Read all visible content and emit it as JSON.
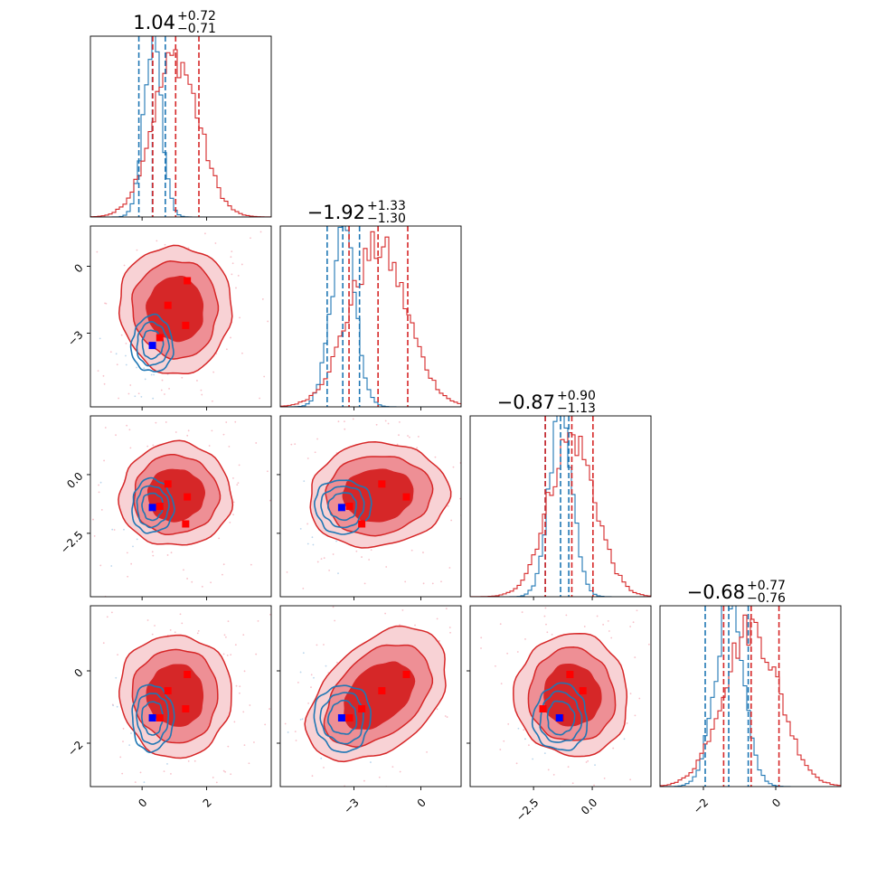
{
  "colors": {
    "prior": "#1f77b4",
    "posterior": "#d62728",
    "prior_marker": "#0000ff",
    "posterior_marker": "#ff0000"
  },
  "chart_data": {
    "type": "corner",
    "n_params": 4,
    "params": [
      {
        "range": [
          -1.6,
          4.0
        ],
        "ticks": [
          0,
          2
        ],
        "tick_labels": [
          "0",
          "2"
        ],
        "title": {
          "median": "1.04",
          "plus": "+0.72",
          "minus": "−0.71"
        },
        "prior": {
          "mean": 0.32,
          "sd": 0.28,
          "quantiles": [
            -0.1,
            0.72
          ]
        },
        "posterior": {
          "mean": 1.04,
          "sd": 0.72,
          "quantiles": [
            0.33,
            1.76
          ]
        }
      },
      {
        "range": [
          -6.3,
          1.8
        ],
        "ticks": [
          -3,
          0
        ],
        "tick_labels": [
          "−3",
          "0"
        ],
        "title": {
          "median": "−1.92",
          "plus": "+1.33",
          "minus": "−1.30"
        },
        "prior": {
          "mean": -3.5,
          "sd": 0.55,
          "quantiles": [
            -4.2,
            -2.75
          ]
        },
        "posterior": {
          "mean": -1.92,
          "sd": 1.3,
          "quantiles": [
            -3.22,
            -0.59
          ]
        }
      },
      {
        "range": [
          -5.2,
          2.5
        ],
        "ticks": [
          -2.5,
          0
        ],
        "tick_labels": [
          "−2.5",
          "0.0"
        ],
        "title": {
          "median": "−0.87",
          "plus": "+0.90",
          "minus": "−1.13"
        },
        "prior": {
          "mean": -1.35,
          "sd": 0.5,
          "quantiles": [
            -2.0,
            -1.0
          ]
        },
        "posterior": {
          "mean": -0.87,
          "sd": 1.0,
          "quantiles": [
            -2.0,
            0.03
          ]
        }
      },
      {
        "range": [
          -3.2,
          1.8
        ],
        "ticks": [
          -2,
          0
        ],
        "tick_labels": [
          "−2",
          "0"
        ],
        "title": {
          "median": "−0.68",
          "plus": "+0.77",
          "minus": "−0.76"
        },
        "prior": {
          "mean": -1.3,
          "sd": 0.4,
          "quantiles": [
            -1.95,
            -0.76
          ]
        },
        "posterior": {
          "mean": -0.68,
          "sd": 0.77,
          "quantiles": [
            -1.44,
            0.09
          ]
        }
      }
    ],
    "y_tick_labels": {
      "1": {
        "ticks": [
          0,
          -3
        ],
        "labels": [
          "0",
          "−3"
        ]
      },
      "2": {
        "ticks": [
          0,
          -2.5
        ],
        "labels": [
          "0.0",
          "−2.5"
        ]
      },
      "3": {
        "ticks": [
          0,
          -2
        ],
        "labels": [
          "0",
          "−2"
        ]
      }
    },
    "prior_marker": [
      0.32,
      -3.55,
      -1.4,
      -1.3
    ],
    "posterior_markers": [
      [
        0.55,
        -3.2,
        -1.35,
        -1.3
      ],
      [
        0.8,
        -1.75,
        -0.4,
        -0.55
      ],
      [
        1.35,
        -2.65,
        -2.1,
        -1.05
      ],
      [
        1.4,
        -0.65,
        -0.95,
        -0.1
      ]
    ]
  }
}
